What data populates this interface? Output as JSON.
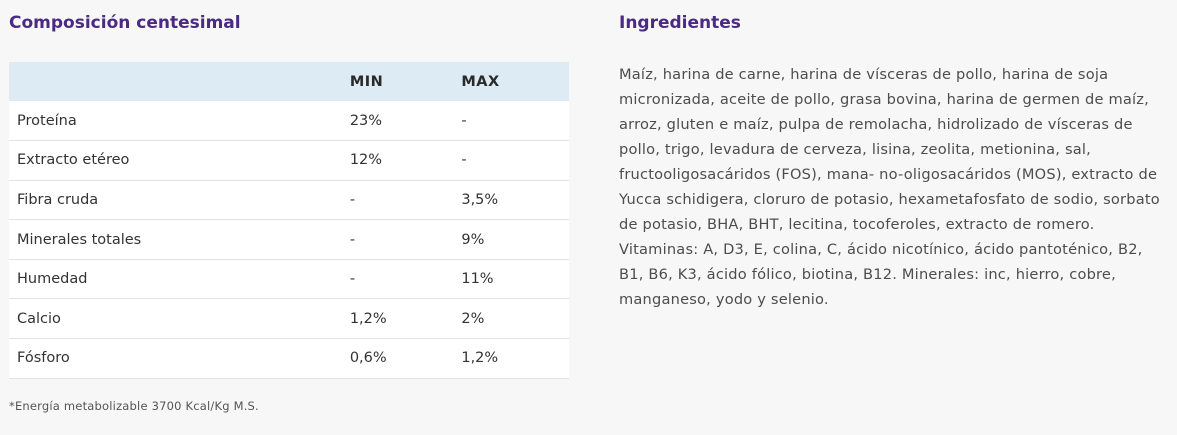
{
  "composition": {
    "title": "Composición centesimal",
    "headers": {
      "nutrient": "",
      "min": "MIN",
      "max": "MAX"
    },
    "rows": [
      {
        "name": "Proteína",
        "min": "23%",
        "max": "-"
      },
      {
        "name": "Extracto etéreo",
        "min": "12%",
        "max": "-"
      },
      {
        "name": "Fibra cruda",
        "min": "-",
        "max": "3,5%"
      },
      {
        "name": "Minerales totales",
        "min": "-",
        "max": "9%"
      },
      {
        "name": "Humedad",
        "min": "-",
        "max": "11%"
      },
      {
        "name": "Calcio",
        "min": "1,2%",
        "max": "2%"
      },
      {
        "name": "Fósforo",
        "min": "0,6%",
        "max": "1,2%"
      }
    ],
    "footnote": "*Energía metabolizable 3700 Kcal/Kg M.S."
  },
  "ingredients": {
    "title": "Ingredientes",
    "text": "Maíz, harina de carne, harina de vísceras de pollo, harina de soja micronizada, aceite de pollo, grasa bovina, harina de germen de maíz, arroz, gluten  e maíz, pulpa de remolacha, hidrolizado de vísceras de pollo, trigo, levadura de cerveza, lisina, zeolita, metionina, sal, fructooligosacáridos (FOS), mana- no-oligosacáridos (MOS), extracto de Yucca schidigera, cloruro de potasio, hexametafosfato de sodio, sorbato de potasio, BHA, BHT, lecitina, tocoferoles, extracto de romero. Vitaminas: A, D3, E, colina, C, ácido nicotínico, ácido pantoténico, B2, B1, B6, K3, ácido fólico, biotina, B12. Minerales:  inc, hierro, cobre, manganeso, yodo y selenio."
  },
  "colors": {
    "title": "#4a2a83",
    "table_header_bg": "#dcebf4",
    "row_bg": "#ffffff",
    "page_bg": "#f7f7f7"
  }
}
